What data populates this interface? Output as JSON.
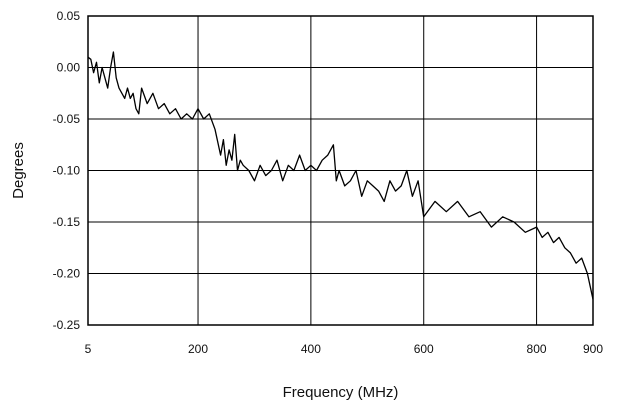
{
  "chart_data": {
    "type": "line",
    "title": "",
    "xlabel": "Frequency (MHz)",
    "ylabel": "Degrees",
    "xlim": [
      5,
      900
    ],
    "ylim": [
      -0.25,
      0.05
    ],
    "grid": true,
    "x_ticks": [
      {
        "value": 5,
        "label": "5"
      },
      {
        "value": 200,
        "label": "200"
      },
      {
        "value": 400,
        "label": "400"
      },
      {
        "value": 600,
        "label": "600"
      },
      {
        "value": 800,
        "label": "800"
      },
      {
        "value": 900,
        "label": "900"
      }
    ],
    "y_ticks": [
      {
        "value": 0.05,
        "label": "0.05"
      },
      {
        "value": 0.0,
        "label": "0.00"
      },
      {
        "value": -0.05,
        "label": "-0.05"
      },
      {
        "value": -0.1,
        "label": "-0.10"
      },
      {
        "value": -0.15,
        "label": "-0.15"
      },
      {
        "value": -0.2,
        "label": "-0.20"
      },
      {
        "value": -0.25,
        "label": "-0.25"
      }
    ],
    "series": [
      {
        "color": "#000000",
        "x": [
          5,
          10,
          15,
          20,
          25,
          30,
          35,
          40,
          45,
          50,
          55,
          60,
          65,
          70,
          75,
          80,
          85,
          90,
          95,
          100,
          110,
          120,
          130,
          140,
          150,
          160,
          170,
          180,
          190,
          200,
          210,
          220,
          230,
          240,
          245,
          250,
          255,
          260,
          265,
          270,
          275,
          280,
          290,
          300,
          310,
          320,
          330,
          340,
          350,
          360,
          370,
          380,
          390,
          400,
          410,
          420,
          430,
          440,
          445,
          450,
          460,
          470,
          480,
          490,
          500,
          510,
          520,
          530,
          540,
          550,
          560,
          570,
          580,
          590,
          600,
          620,
          640,
          660,
          680,
          700,
          720,
          740,
          760,
          780,
          800,
          810,
          820,
          830,
          840,
          850,
          860,
          870,
          880,
          890,
          900
        ],
        "y": [
          0.01,
          0.008,
          -0.005,
          0.005,
          -0.015,
          0.0,
          -0.01,
          -0.02,
          0.0,
          0.015,
          -0.01,
          -0.02,
          -0.025,
          -0.03,
          -0.02,
          -0.03,
          -0.025,
          -0.04,
          -0.045,
          -0.02,
          -0.035,
          -0.025,
          -0.04,
          -0.035,
          -0.045,
          -0.04,
          -0.05,
          -0.045,
          -0.05,
          -0.04,
          -0.05,
          -0.045,
          -0.06,
          -0.085,
          -0.07,
          -0.095,
          -0.08,
          -0.09,
          -0.065,
          -0.1,
          -0.09,
          -0.095,
          -0.1,
          -0.11,
          -0.095,
          -0.105,
          -0.1,
          -0.09,
          -0.11,
          -0.095,
          -0.1,
          -0.085,
          -0.1,
          -0.095,
          -0.1,
          -0.09,
          -0.085,
          -0.075,
          -0.11,
          -0.1,
          -0.115,
          -0.11,
          -0.1,
          -0.125,
          -0.11,
          -0.115,
          -0.12,
          -0.13,
          -0.11,
          -0.12,
          -0.115,
          -0.1,
          -0.125,
          -0.11,
          -0.145,
          -0.13,
          -0.14,
          -0.13,
          -0.145,
          -0.14,
          -0.155,
          -0.145,
          -0.15,
          -0.16,
          -0.155,
          -0.165,
          -0.16,
          -0.17,
          -0.165,
          -0.175,
          -0.18,
          -0.19,
          -0.185,
          -0.2,
          -0.225
        ]
      }
    ]
  }
}
